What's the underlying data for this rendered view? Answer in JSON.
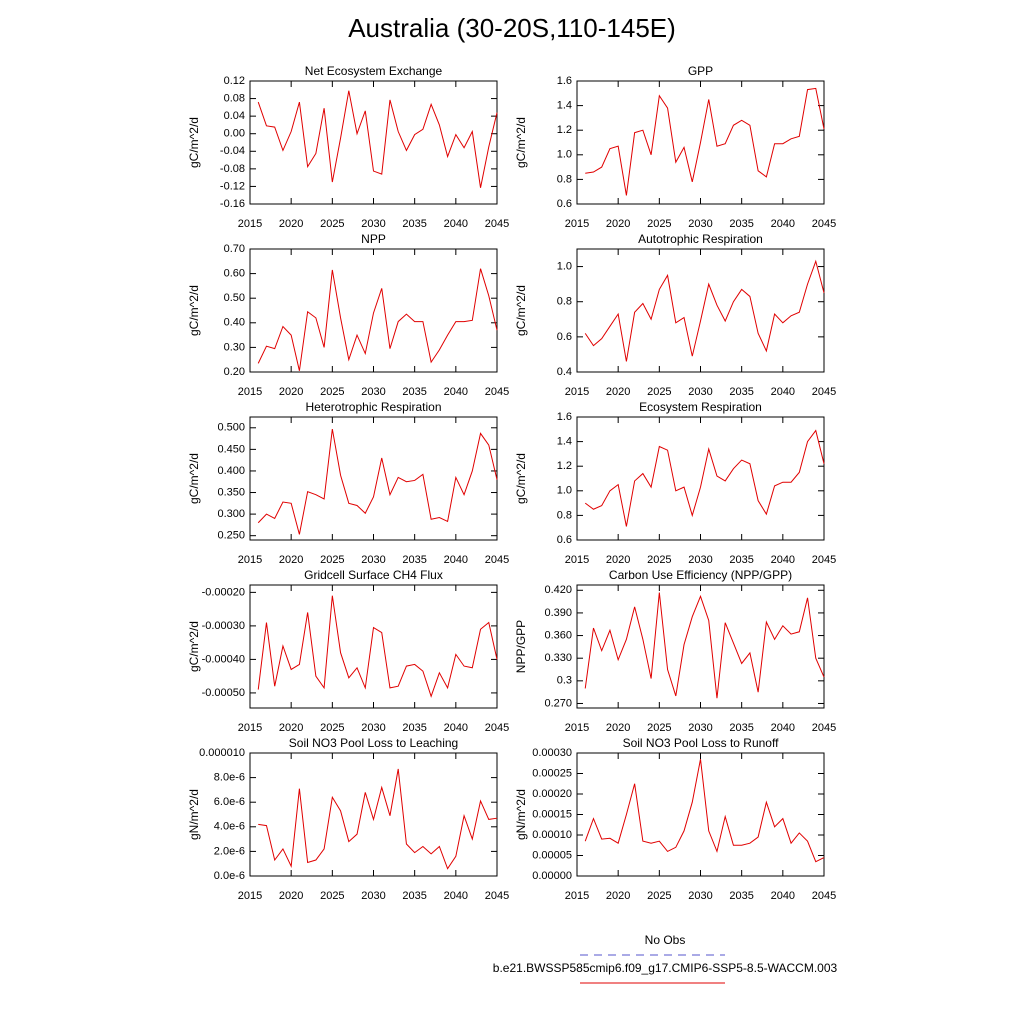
{
  "title": "Australia (30-20S,110-145E)",
  "legend": [
    {
      "name": "No Obs",
      "color": "#5555cc",
      "dash": true
    },
    {
      "name": "b.e21.BWSSP585cmip6.f09_g17.CMIP6-SSP5-8.5-WACCM.003",
      "color": "#e00000",
      "dash": false
    }
  ],
  "chart_data": [
    {
      "type": "line",
      "title": "Net Ecosystem Exchange",
      "y_label": "gC/m^2/d",
      "color": "#e00000",
      "x": [
        2016,
        2017,
        2018,
        2019,
        2020,
        2021,
        2022,
        2023,
        2024,
        2025,
        2026,
        2027,
        2028,
        2029,
        2030,
        2031,
        2032,
        2033,
        2034,
        2035,
        2036,
        2037,
        2038,
        2039,
        2040,
        2041,
        2042,
        2043,
        2044,
        2045
      ],
      "values": [
        0.072,
        0.018,
        0.015,
        -0.038,
        0.005,
        0.072,
        -0.075,
        -0.045,
        0.058,
        -0.11,
        -0.01,
        0.098,
        0.0,
        0.052,
        -0.085,
        -0.092,
        0.077,
        0.005,
        -0.038,
        -0.002,
        0.01,
        0.067,
        0.02,
        -0.052,
        -0.002,
        -0.032,
        0.005,
        -0.123,
        -0.03,
        0.048
      ],
      "xlim": [
        2015,
        2045
      ],
      "xticks": [
        2015,
        2020,
        2025,
        2030,
        2035,
        2040,
        2045
      ],
      "ylim": [
        -0.16,
        0.12
      ],
      "yticks": [
        -0.16,
        -0.12,
        -0.08,
        -0.04,
        {
          "value": 0,
          "label": "0.00"
        },
        0.04,
        0.08,
        0.12
      ]
    },
    {
      "type": "line",
      "title": "GPP",
      "y_label": "gC/m^2/d",
      "color": "#e00000",
      "x": [
        2016,
        2017,
        2018,
        2019,
        2020,
        2021,
        2022,
        2023,
        2024,
        2025,
        2026,
        2027,
        2028,
        2029,
        2030,
        2031,
        2032,
        2033,
        2034,
        2035,
        2036,
        2037,
        2038,
        2039,
        2040,
        2041,
        2042,
        2043,
        2044,
        2045
      ],
      "values": [
        0.85,
        0.86,
        0.9,
        1.05,
        1.07,
        0.67,
        1.18,
        1.2,
        1.0,
        1.48,
        1.38,
        0.94,
        1.06,
        0.78,
        1.1,
        1.45,
        1.07,
        1.09,
        1.24,
        1.28,
        1.24,
        0.87,
        0.82,
        1.09,
        1.09,
        1.13,
        1.15,
        1.53,
        1.54,
        1.21
      ],
      "xlim": [
        2015,
        2045
      ],
      "xticks": [
        2015,
        2020,
        2025,
        2030,
        2035,
        2040,
        2045
      ],
      "ylim": [
        0.6,
        1.6
      ],
      "yticks": [
        0.6,
        0.8,
        {
          "value": 1,
          "label": "1.0"
        },
        1.2,
        1.4,
        1.6
      ]
    },
    {
      "type": "line",
      "title": "NPP",
      "y_label": "gC/m^2/d",
      "color": "#e00000",
      "x": [
        2016,
        2017,
        2018,
        2019,
        2020,
        2021,
        2022,
        2023,
        2024,
        2025,
        2026,
        2027,
        2028,
        2029,
        2030,
        2031,
        2032,
        2033,
        2034,
        2035,
        2036,
        2037,
        2038,
        2039,
        2040,
        2041,
        2042,
        2043,
        2044,
        2045
      ],
      "values": [
        0.235,
        0.305,
        0.295,
        0.385,
        0.35,
        0.205,
        0.445,
        0.42,
        0.3,
        0.615,
        0.42,
        0.25,
        0.35,
        0.275,
        0.44,
        0.54,
        0.295,
        0.405,
        0.435,
        0.405,
        0.405,
        0.24,
        0.29,
        0.35,
        0.405,
        0.405,
        0.41,
        0.62,
        0.51,
        0.37
      ],
      "xlim": [
        2015,
        2045
      ],
      "xticks": [
        2015,
        2020,
        2025,
        2030,
        2035,
        2040,
        2045
      ],
      "ylim": [
        0.2,
        0.7
      ],
      "yticks": [
        {
          "value": 0.2,
          "label": "0.20"
        },
        {
          "value": 0.3,
          "label": "0.30"
        },
        {
          "value": 0.4,
          "label": "0.40"
        },
        {
          "value": 0.5,
          "label": "0.50"
        },
        {
          "value": 0.6,
          "label": "0.60"
        },
        {
          "value": 0.7,
          "label": "0.70"
        }
      ]
    },
    {
      "type": "line",
      "title": "Autotrophic Respiration",
      "y_label": "gC/m^2/d",
      "color": "#e00000",
      "x": [
        2016,
        2017,
        2018,
        2019,
        2020,
        2021,
        2022,
        2023,
        2024,
        2025,
        2026,
        2027,
        2028,
        2029,
        2030,
        2031,
        2032,
        2033,
        2034,
        2035,
        2036,
        2037,
        2038,
        2039,
        2040,
        2041,
        2042,
        2043,
        2044,
        2045
      ],
      "values": [
        0.62,
        0.55,
        0.59,
        0.66,
        0.73,
        0.46,
        0.74,
        0.79,
        0.7,
        0.87,
        0.95,
        0.68,
        0.71,
        0.49,
        0.69,
        0.9,
        0.78,
        0.69,
        0.8,
        0.87,
        0.83,
        0.62,
        0.52,
        0.73,
        0.68,
        0.72,
        0.74,
        0.9,
        1.03,
        0.85
      ],
      "xlim": [
        2015,
        2045
      ],
      "xticks": [
        2015,
        2020,
        2025,
        2030,
        2035,
        2040,
        2045
      ],
      "ylim": [
        0.4,
        1.1
      ],
      "yticks": [
        0.4,
        0.6,
        0.8,
        {
          "value": 1,
          "label": "1.0"
        }
      ]
    },
    {
      "type": "line",
      "title": "Heterotrophic Respiration",
      "y_label": "gC/m^2/d",
      "color": "#e00000",
      "x": [
        2016,
        2017,
        2018,
        2019,
        2020,
        2021,
        2022,
        2023,
        2024,
        2025,
        2026,
        2027,
        2028,
        2029,
        2030,
        2031,
        2032,
        2033,
        2034,
        2035,
        2036,
        2037,
        2038,
        2039,
        2040,
        2041,
        2042,
        2043,
        2044,
        2045
      ],
      "values": [
        0.28,
        0.3,
        0.29,
        0.328,
        0.325,
        0.253,
        0.352,
        0.345,
        0.335,
        0.497,
        0.39,
        0.325,
        0.32,
        0.302,
        0.34,
        0.43,
        0.345,
        0.385,
        0.375,
        0.378,
        0.392,
        0.288,
        0.292,
        0.283,
        0.385,
        0.345,
        0.4,
        0.487,
        0.46,
        0.38
      ],
      "xlim": [
        2015,
        2045
      ],
      "xticks": [
        2015,
        2020,
        2025,
        2030,
        2035,
        2040,
        2045
      ],
      "ylim": [
        0.24,
        0.525
      ],
      "yticks": [
        {
          "value": 0.25,
          "label": "0.250"
        },
        {
          "value": 0.3,
          "label": "0.300"
        },
        {
          "value": 0.35,
          "label": "0.350"
        },
        {
          "value": 0.4,
          "label": "0.400"
        },
        {
          "value": 0.45,
          "label": "0.450"
        },
        {
          "value": 0.5,
          "label": "0.500"
        }
      ]
    },
    {
      "type": "line",
      "title": "Ecosystem Respiration",
      "y_label": "gC/m^2/d",
      "color": "#e00000",
      "x": [
        2016,
        2017,
        2018,
        2019,
        2020,
        2021,
        2022,
        2023,
        2024,
        2025,
        2026,
        2027,
        2028,
        2029,
        2030,
        2031,
        2032,
        2033,
        2034,
        2035,
        2036,
        2037,
        2038,
        2039,
        2040,
        2041,
        2042,
        2043,
        2044,
        2045
      ],
      "values": [
        0.9,
        0.85,
        0.88,
        1.0,
        1.05,
        0.71,
        1.08,
        1.14,
        1.03,
        1.36,
        1.33,
        1.0,
        1.03,
        0.8,
        1.03,
        1.34,
        1.12,
        1.08,
        1.18,
        1.25,
        1.22,
        0.92,
        0.81,
        1.04,
        1.07,
        1.07,
        1.15,
        1.4,
        1.49,
        1.22
      ],
      "xlim": [
        2015,
        2045
      ],
      "xticks": [
        2015,
        2020,
        2025,
        2030,
        2035,
        2040,
        2045
      ],
      "ylim": [
        0.6,
        1.6
      ],
      "yticks": [
        0.6,
        0.8,
        {
          "value": 1,
          "label": "1.0"
        },
        1.2,
        1.4,
        1.6
      ]
    },
    {
      "type": "line",
      "title": "Gridcell Surface CH4 Flux",
      "y_label": "gC/m^2/d",
      "color": "#e00000",
      "x": [
        2016,
        2017,
        2018,
        2019,
        2020,
        2021,
        2022,
        2023,
        2024,
        2025,
        2026,
        2027,
        2028,
        2029,
        2030,
        2031,
        2032,
        2033,
        2034,
        2035,
        2036,
        2037,
        2038,
        2039,
        2040,
        2041,
        2042,
        2043,
        2044,
        2045
      ],
      "values": [
        -0.00049,
        -0.00029,
        -0.00048,
        -0.00036,
        -0.00043,
        -0.000415,
        -0.00026,
        -0.00045,
        -0.000485,
        -0.00021,
        -0.00038,
        -0.000455,
        -0.000425,
        -0.000485,
        -0.000305,
        -0.00032,
        -0.000485,
        -0.00048,
        -0.00042,
        -0.000415,
        -0.000435,
        -0.00051,
        -0.00044,
        -0.000485,
        -0.000385,
        -0.00042,
        -0.000425,
        -0.00031,
        -0.00029,
        -0.0004
      ],
      "xlim": [
        2015,
        2045
      ],
      "xticks": [
        2015,
        2020,
        2025,
        2030,
        2035,
        2040,
        2045
      ],
      "ylim": [
        -0.000545,
        -0.000178
      ],
      "yticks": [
        {
          "value": -0.0005,
          "label": "-0.00050"
        },
        {
          "value": -0.0004,
          "label": "-0.00040"
        },
        {
          "value": -0.0003,
          "label": "-0.00030"
        },
        {
          "value": -0.0002,
          "label": "-0.00020"
        }
      ]
    },
    {
      "type": "line",
      "title": "Carbon Use Efficiency (NPP/GPP)",
      "y_label": "NPP/GPP",
      "color": "#e00000",
      "x": [
        2016,
        2017,
        2018,
        2019,
        2020,
        2021,
        2022,
        2023,
        2024,
        2025,
        2026,
        2027,
        2028,
        2029,
        2030,
        2031,
        2032,
        2033,
        2034,
        2035,
        2036,
        2037,
        2038,
        2039,
        2040,
        2041,
        2042,
        2043,
        2044,
        2045
      ],
      "values": [
        0.29,
        0.37,
        0.34,
        0.367,
        0.328,
        0.355,
        0.398,
        0.355,
        0.303,
        0.417,
        0.315,
        0.28,
        0.348,
        0.385,
        0.412,
        0.38,
        0.277,
        0.377,
        0.35,
        0.323,
        0.337,
        0.285,
        0.378,
        0.355,
        0.373,
        0.362,
        0.365,
        0.41,
        0.33,
        0.305
      ],
      "xlim": [
        2015,
        2045
      ],
      "xticks": [
        2015,
        2020,
        2025,
        2030,
        2035,
        2040,
        2045
      ],
      "ylim": [
        0.264,
        0.427
      ],
      "yticks": [
        {
          "value": 0.27,
          "label": "0.270"
        },
        0.3,
        {
          "value": 0.33,
          "label": "0.330"
        },
        {
          "value": 0.36,
          "label": "0.360"
        },
        {
          "value": 0.39,
          "label": "0.390"
        },
        {
          "value": 0.42,
          "label": "0.420"
        }
      ]
    },
    {
      "type": "line",
      "title": "Soil NO3 Pool Loss to Leaching",
      "y_label": "gN/m^2/d",
      "color": "#e00000",
      "x": [
        2016,
        2017,
        2018,
        2019,
        2020,
        2021,
        2022,
        2023,
        2024,
        2025,
        2026,
        2027,
        2028,
        2029,
        2030,
        2031,
        2032,
        2033,
        2034,
        2035,
        2036,
        2037,
        2038,
        2039,
        2040,
        2041,
        2042,
        2043,
        2044,
        2045
      ],
      "values": [
        4.2e-06,
        4.1e-06,
        1.3e-06,
        2.2e-06,
        8e-07,
        7.1e-06,
        1.1e-06,
        1.3e-06,
        2.2e-06,
        6.4e-06,
        5.3e-06,
        2.8e-06,
        3.4e-06,
        6.8e-06,
        4.6e-06,
        7.2e-06,
        4.9e-06,
        8.7e-06,
        2.6e-06,
        1.9e-06,
        2.4e-06,
        1.8e-06,
        2.4e-06,
        6e-07,
        1.6e-06,
        4.9e-06,
        3e-06,
        6.1e-06,
        4.6e-06,
        4.7e-06
      ],
      "xlim": [
        2015,
        2045
      ],
      "xticks": [
        2015,
        2020,
        2025,
        2030,
        2035,
        2040,
        2045
      ],
      "ylim": [
        0,
        1e-05
      ],
      "yticks": [
        {
          "value": 0,
          "label": "0.0e-6"
        },
        {
          "value": 2e-06,
          "label": "2.0e-6"
        },
        {
          "value": 4e-06,
          "label": "4.0e-6"
        },
        {
          "value": 6e-06,
          "label": "6.0e-6"
        },
        {
          "value": 8e-06,
          "label": "8.0e-6"
        },
        {
          "value": 1e-05,
          "label": "0.000010"
        }
      ]
    },
    {
      "type": "line",
      "title": "Soil NO3 Pool Loss to Runoff",
      "y_label": "gN/m^2/d",
      "color": "#e00000",
      "x": [
        2016,
        2017,
        2018,
        2019,
        2020,
        2021,
        2022,
        2023,
        2024,
        2025,
        2026,
        2027,
        2028,
        2029,
        2030,
        2031,
        2032,
        2033,
        2034,
        2035,
        2036,
        2037,
        2038,
        2039,
        2040,
        2041,
        2042,
        2043,
        2044,
        2045
      ],
      "values": [
        8.5e-05,
        0.00014,
        9e-05,
        9.2e-05,
        8e-05,
        0.00015,
        0.000225,
        8.5e-05,
        8e-05,
        8.5e-05,
        6e-05,
        7e-05,
        0.00011,
        0.00018,
        0.000285,
        0.00011,
        6e-05,
        0.000145,
        7.5e-05,
        7.5e-05,
        8e-05,
        9.5e-05,
        0.00018,
        0.00012,
        0.00014,
        8e-05,
        0.000105,
        8.5e-05,
        3.5e-05,
        4.5e-05
      ],
      "xlim": [
        2015,
        2045
      ],
      "xticks": [
        2015,
        2020,
        2025,
        2030,
        2035,
        2040,
        2045
      ],
      "ylim": [
        0,
        0.0003
      ],
      "yticks": [
        {
          "value": 0,
          "label": "0.00000"
        },
        {
          "value": 5e-05,
          "label": "0.00005"
        },
        {
          "value": 0.0001,
          "label": "0.00010"
        },
        {
          "value": 0.00015,
          "label": "0.00015"
        },
        {
          "value": 0.0002,
          "label": "0.00020"
        },
        {
          "value": 0.00025,
          "label": "0.00025"
        },
        {
          "value": 0.0003,
          "label": "0.00030"
        }
      ]
    }
  ]
}
